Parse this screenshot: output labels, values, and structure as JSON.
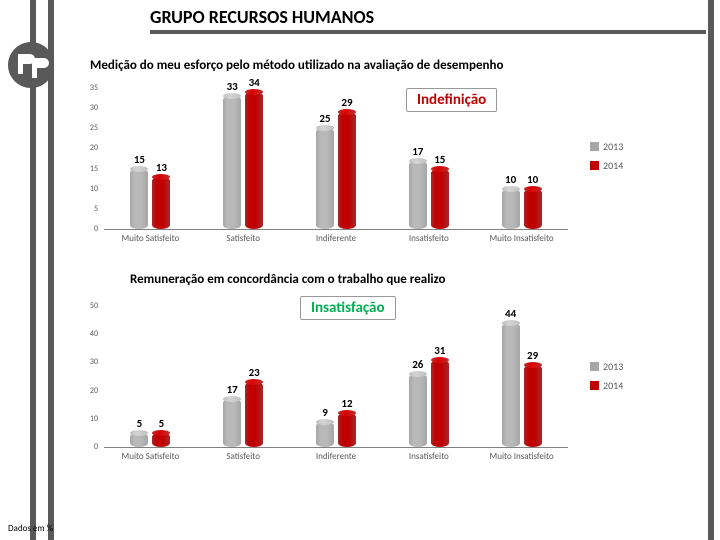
{
  "header": {
    "title": "GRUPO RECURSOS HUMANOS",
    "fontsize": 18
  },
  "colors": {
    "series2013_inner": "#b9b9b9",
    "series2013_outer": "#a6a6a6",
    "series2014_inner1": "#c00000",
    "series2014_inner2": "#d77676",
    "series2014_outer": "#a62828",
    "grid": "#808080",
    "accent": "#595959",
    "annot_indef": "#c00000",
    "annot_insat": "#00b050"
  },
  "chart1": {
    "subtitle": "Medição do meu esforço pelo método utilizado na avaliação de desempenho",
    "subtitle_fontsize": 13,
    "annot_text": "Indefinição",
    "annot_fontsize": 15,
    "ylim": [
      0,
      35
    ],
    "ytick_step": 5,
    "categories": [
      "Muito Satisfeito",
      "Satisfeito",
      "Indiferente",
      "Insatisfeito",
      "Muito Insatisfeito"
    ],
    "values2013": [
      15,
      33,
      25,
      17,
      10
    ],
    "values2014": [
      13,
      34,
      29,
      15,
      10
    ],
    "legend": [
      "2013",
      "2014"
    ]
  },
  "chart2": {
    "subtitle": "Remuneração em concordância com o trabalho que realizo",
    "subtitle_fontsize": 13,
    "annot_text": "Insatisfação",
    "annot_fontsize": 15,
    "ylim": [
      0,
      50
    ],
    "ytick_step": 10,
    "categories": [
      "Muito Satisfeito",
      "Satisfeito",
      "Indiferente",
      "Insatisfeito",
      "Muito Insatisfeito"
    ],
    "values2013": [
      5,
      17,
      9,
      26,
      44
    ],
    "values2014": [
      5,
      23,
      12,
      31,
      29
    ],
    "legend": [
      "2013",
      "2014"
    ]
  },
  "footer": "Dados em %"
}
